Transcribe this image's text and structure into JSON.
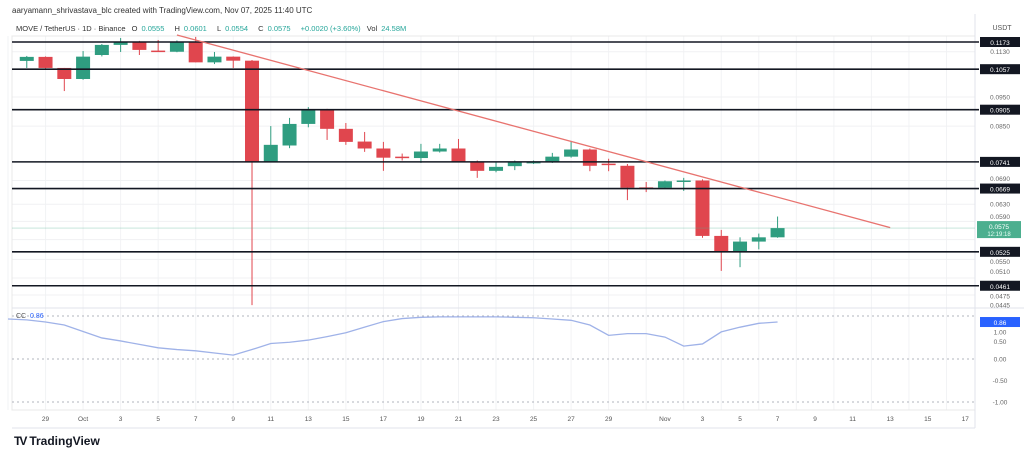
{
  "header": {
    "credit": "aaryamann_shrivastava_blc created with TradingView.com, Nov 07, 2025 11:40 UTC"
  },
  "legend": {
    "symbol": "MOVE / TetherUS · 1D · Binance",
    "o_label": "O",
    "o": "0.0555",
    "h_label": "H",
    "h": "0.0601",
    "l_label": "L",
    "l": "0.0554",
    "c_label": "C",
    "c": "0.0575",
    "change": "+0.0020 (+3.60%)",
    "vol_label": "Vol",
    "vol": "24.58M"
  },
  "price_axis": {
    "currency": "USDT",
    "labels": [
      "0.1130",
      "0.0950",
      "0.0850",
      "0.0690",
      "0.0630",
      "0.0590",
      "0.0550",
      "0.0510",
      "0.0475",
      "0.0445"
    ],
    "levels": [
      "0.1173",
      "0.1057",
      "0.0905",
      "0.0741",
      "0.0669",
      "0.0525",
      "0.0461"
    ],
    "current_price": "0.0575",
    "countdown": "12:19:18"
  },
  "colors": {
    "up": "#2f9d80",
    "down": "#e0464e",
    "trend": "#e8736f",
    "cc": "#9fb2e8",
    "cc_badge": "#2962ff",
    "price_badge": "#4caf8f"
  },
  "time_axis": {
    "labels": [
      {
        "t": "29",
        "i": 2
      },
      {
        "t": "Oct",
        "i": 4
      },
      {
        "t": "3",
        "i": 6
      },
      {
        "t": "5",
        "i": 8
      },
      {
        "t": "7",
        "i": 10
      },
      {
        "t": "9",
        "i": 12
      },
      {
        "t": "11",
        "i": 14
      },
      {
        "t": "13",
        "i": 16
      },
      {
        "t": "15",
        "i": 18
      },
      {
        "t": "17",
        "i": 20
      },
      {
        "t": "19",
        "i": 22
      },
      {
        "t": "21",
        "i": 24
      },
      {
        "t": "23",
        "i": 26
      },
      {
        "t": "25",
        "i": 28
      },
      {
        "t": "27",
        "i": 30
      },
      {
        "t": "29",
        "i": 32
      },
      {
        "t": "Nov",
        "i": 35
      },
      {
        "t": "3",
        "i": 37
      },
      {
        "t": "5",
        "i": 39
      },
      {
        "t": "7",
        "i": 41
      },
      {
        "t": "9",
        "i": 43
      },
      {
        "t": "11",
        "i": 45
      },
      {
        "t": "13",
        "i": 47
      },
      {
        "t": "15",
        "i": 49
      },
      {
        "t": "17",
        "i": 51
      }
    ]
  },
  "indicator": {
    "name": "CC",
    "value": "0.86",
    "axis_labels": [
      "1.00",
      "0.50",
      "0.00",
      "-0.50",
      "-1.00"
    ]
  },
  "logo": {
    "text": "TradingView"
  },
  "chart_data": {
    "type": "candlestick",
    "title": "MOVE / TetherUS · 1D · Binance",
    "scale": "log",
    "first_date": "Sep 28",
    "candles_ohlc": [
      [
        0.1091,
        0.1112,
        0.1062,
        0.1108
      ],
      [
        0.1108,
        0.111,
        0.106,
        0.1062
      ],
      [
        0.1062,
        0.1062,
        0.0972,
        0.1018
      ],
      [
        0.1018,
        0.1133,
        0.1015,
        0.1109
      ],
      [
        0.1116,
        0.1164,
        0.111,
        0.116
      ],
      [
        0.116,
        0.1191,
        0.1129,
        0.1174
      ],
      [
        0.1174,
        0.1178,
        0.1116,
        0.1138
      ],
      [
        0.1135,
        0.1182,
        0.1133,
        0.1133
      ],
      [
        0.113,
        0.118,
        0.1128,
        0.1174
      ],
      [
        0.1174,
        0.1196,
        0.1085,
        0.1085
      ],
      [
        0.1085,
        0.1129,
        0.1078,
        0.1109
      ],
      [
        0.1109,
        0.111,
        0.1062,
        0.1092
      ],
      [
        0.1092,
        0.1095,
        0.0428,
        0.0741
      ],
      [
        0.0741,
        0.085,
        0.0741,
        0.0791
      ],
      [
        0.0789,
        0.0877,
        0.0781,
        0.0857
      ],
      [
        0.0857,
        0.0914,
        0.0846,
        0.0905
      ],
      [
        0.0905,
        0.0908,
        0.0806,
        0.0841
      ],
      [
        0.0841,
        0.086,
        0.0791,
        0.08
      ],
      [
        0.0801,
        0.0831,
        0.077,
        0.078
      ],
      [
        0.078,
        0.08,
        0.0716,
        0.0753
      ],
      [
        0.0756,
        0.0765,
        0.0745,
        0.0755
      ],
      [
        0.0752,
        0.0794,
        0.0738,
        0.0771
      ],
      [
        0.0771,
        0.0794,
        0.0768,
        0.078
      ],
      [
        0.078,
        0.0809,
        0.0742,
        0.0742
      ],
      [
        0.0742,
        0.0745,
        0.0697,
        0.0716
      ],
      [
        0.0716,
        0.074,
        0.0712,
        0.0727
      ],
      [
        0.0729,
        0.0745,
        0.0718,
        0.074
      ],
      [
        0.074,
        0.0745,
        0.0735,
        0.0741
      ],
      [
        0.074,
        0.0767,
        0.0738,
        0.0756
      ],
      [
        0.0756,
        0.0803,
        0.0753,
        0.0777
      ],
      [
        0.0777,
        0.078,
        0.0715,
        0.073
      ],
      [
        0.0736,
        0.075,
        0.0715,
        0.0735
      ],
      [
        0.073,
        0.0735,
        0.064,
        0.0671
      ],
      [
        0.0672,
        0.0686,
        0.066,
        0.0671
      ],
      [
        0.0671,
        0.069,
        0.0668,
        0.0688
      ],
      [
        0.0689,
        0.0697,
        0.0663,
        0.069
      ],
      [
        0.069,
        0.0693,
        0.0554,
        0.0558
      ],
      [
        0.0558,
        0.0571,
        0.0488,
        0.0525
      ],
      [
        0.0525,
        0.0555,
        0.0495,
        0.0546
      ],
      [
        0.0546,
        0.0563,
        0.053,
        0.0555
      ],
      [
        0.0555,
        0.0601,
        0.0554,
        0.0575
      ]
    ],
    "trendline": {
      "from": {
        "date": "Oct 6",
        "price": 0.1205
      },
      "to": {
        "date": "Nov 13",
        "price": 0.0576
      }
    },
    "horizontal_levels": [
      0.1173,
      0.1057,
      0.0905,
      0.0741,
      0.0669,
      0.0525,
      0.0461
    ],
    "cc_series": [
      0.93,
      0.91,
      0.86,
      0.79,
      0.64,
      0.49,
      0.42,
      0.34,
      0.26,
      0.22,
      0.19,
      0.14,
      0.09,
      0.22,
      0.36,
      0.39,
      0.44,
      0.52,
      0.61,
      0.74,
      0.87,
      0.94,
      0.97,
      0.98,
      0.98,
      0.98,
      0.98,
      0.97,
      0.96,
      0.93,
      0.9,
      0.79,
      0.55,
      0.59,
      0.59,
      0.51,
      0.3,
      0.35,
      0.63,
      0.74,
      0.83,
      0.86
    ],
    "cc_ylim": [
      -1,
      1
    ]
  }
}
